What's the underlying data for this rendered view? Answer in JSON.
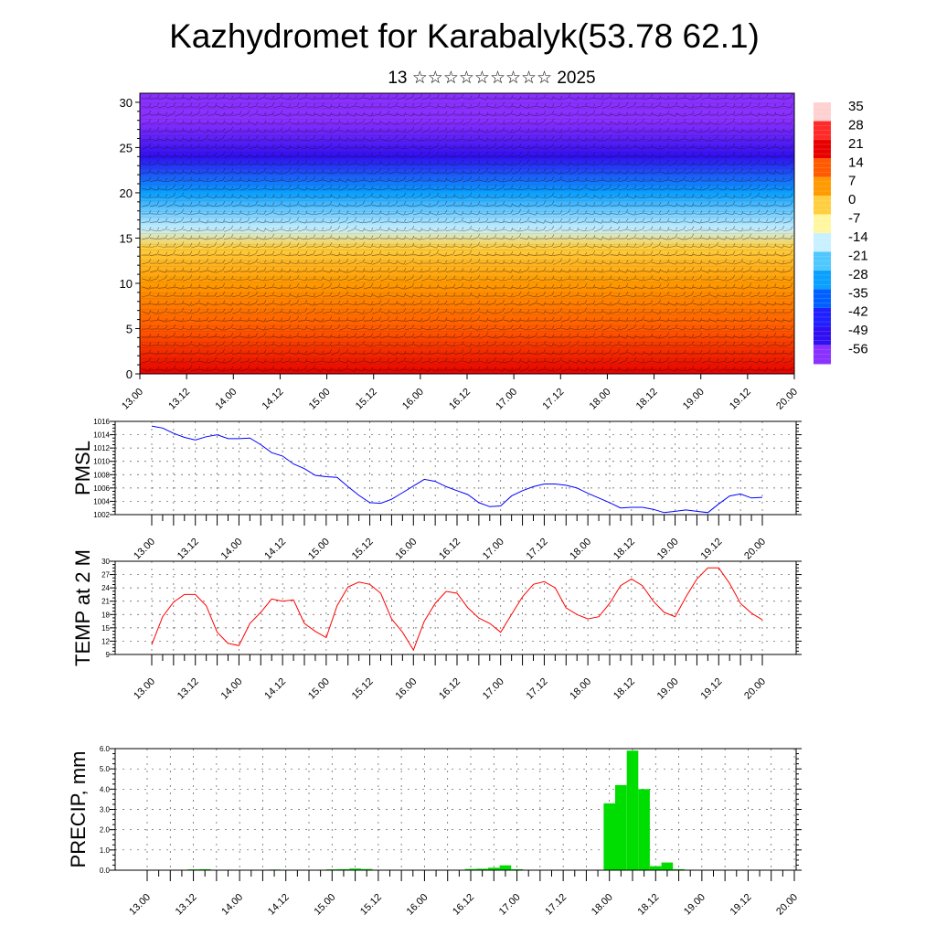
{
  "title": "Kazhydromet for Karabalyk(53.78 62.1)",
  "subtitle": "13 ☆☆☆☆☆☆☆☆☆ 2025",
  "time_labels": [
    "13.00",
    "13.12",
    "14.00",
    "14.12",
    "15.00",
    "15.12",
    "16.00",
    "16.12",
    "17.00",
    "17.12",
    "18.00",
    "18.12",
    "19.00",
    "19.12",
    "20.00"
  ],
  "chart_data": [
    {
      "type": "heatmap",
      "description_of_fields": "vertical cross-section: temperature colour field with wind barbs",
      "ylim": [
        0,
        31
      ],
      "yticks": [
        0,
        5,
        10,
        15,
        20,
        25,
        30
      ],
      "colorbar": {
        "labels": [
          "35",
          "28",
          "21",
          "14",
          "7",
          "0",
          "-7",
          "-14",
          "-21",
          "-28",
          "-35",
          "-42",
          "-49",
          "-56"
        ],
        "colors": [
          "#ffd0d0",
          "#ff2a2a",
          "#e80000",
          "#ff5a00",
          "#ff9a00",
          "#ffcf40",
          "#fff7a0",
          "#c8f0ff",
          "#4fc8ff",
          "#0aa0ff",
          "#0060ff",
          "#2020ff",
          "#3010f0",
          "#8a30ff"
        ]
      },
      "temperature_by_height": [
        {
          "level": 0,
          "value": 21
        },
        {
          "level": 5,
          "value": 18
        },
        {
          "level": 10,
          "value": 10
        },
        {
          "level": 14,
          "value": 2
        },
        {
          "level": 16,
          "value": -8
        },
        {
          "level": 20,
          "value": -25
        },
        {
          "level": 24,
          "value": -45
        },
        {
          "level": 28,
          "value": -55
        },
        {
          "level": 31,
          "value": -58
        }
      ]
    },
    {
      "type": "line",
      "ylabel": "PMSL",
      "ylim": [
        1002,
        1016
      ],
      "yticks": [
        1002,
        1004,
        1006,
        1008,
        1010,
        1012,
        1014,
        1016
      ],
      "x_range": [
        0,
        168
      ],
      "series": [
        {
          "color": "#0000ff",
          "x": [
            0,
            3,
            6,
            9,
            12,
            15,
            18,
            21,
            24,
            27,
            30,
            33,
            36,
            39,
            42,
            45,
            48,
            51,
            54,
            57,
            60,
            63,
            66,
            69,
            72,
            75,
            78,
            81,
            84,
            87,
            90,
            93,
            96,
            99,
            102,
            105,
            108,
            111,
            114,
            117,
            120,
            123,
            126,
            129,
            132,
            135,
            138,
            141,
            144,
            147,
            150,
            153,
            156,
            159,
            162,
            165,
            168
          ],
          "values": [
            1015.3,
            1015.0,
            1014.2,
            1013.6,
            1013.2,
            1013.7,
            1014.0,
            1013.4,
            1013.4,
            1013.5,
            1012.5,
            1011.3,
            1010.8,
            1009.6,
            1008.9,
            1007.9,
            1007.7,
            1007.6,
            1006.2,
            1004.9,
            1003.8,
            1003.7,
            1004.3,
            1005.3,
            1006.3,
            1007.3,
            1007.0,
            1006.2,
            1005.6,
            1005.0,
            1003.8,
            1003.2,
            1003.3,
            1004.8,
            1005.6,
            1006.2,
            1006.6,
            1006.6,
            1006.4,
            1006.0,
            1005.2,
            1004.5,
            1003.8,
            1003.0,
            1003.1,
            1003.1,
            1002.8,
            1002.3,
            1002.5,
            1002.7,
            1002.5,
            1002.3,
            1003.6,
            1004.8,
            1005.1,
            1004.5,
            1004.6
          ]
        }
      ]
    },
    {
      "type": "line",
      "ylabel": "TEMP at 2 M",
      "ylim": [
        9,
        30
      ],
      "yticks": [
        9,
        12,
        15,
        18,
        21,
        24,
        27,
        30
      ],
      "x_range": [
        0,
        168
      ],
      "series": [
        {
          "color": "#ff0000",
          "x": [
            0,
            3,
            6,
            9,
            12,
            15,
            18,
            21,
            24,
            27,
            30,
            33,
            36,
            39,
            42,
            45,
            48,
            51,
            54,
            57,
            60,
            63,
            66,
            69,
            72,
            75,
            78,
            81,
            84,
            87,
            90,
            93,
            96,
            99,
            102,
            105,
            108,
            111,
            114,
            117,
            120,
            123,
            126,
            129,
            132,
            135,
            138,
            141,
            144,
            147,
            150,
            153,
            156,
            159,
            162,
            165,
            168
          ],
          "values": [
            11.2,
            17.5,
            20.8,
            22.5,
            22.5,
            20.0,
            14.0,
            11.5,
            11.0,
            16.0,
            18.5,
            21.5,
            21.0,
            21.3,
            16.0,
            14.2,
            12.8,
            20.0,
            24.2,
            25.3,
            24.8,
            22.8,
            17.0,
            14.0,
            10.0,
            16.5,
            20.5,
            23.2,
            22.8,
            19.5,
            17.2,
            16.0,
            14.0,
            18.0,
            22.0,
            24.8,
            25.4,
            24.0,
            19.5,
            18.0,
            17.0,
            17.5,
            20.5,
            24.5,
            26.0,
            24.5,
            21.0,
            18.5,
            17.5,
            22.0,
            26.0,
            28.5,
            28.5,
            25.0,
            20.5,
            18.3,
            16.8
          ]
        }
      ]
    },
    {
      "type": "bar",
      "ylabel": "PRECIP, mm",
      "ylim": [
        0,
        6
      ],
      "yticks": [
        "0.0",
        "1.0",
        "2.0",
        "3.0",
        "4.0",
        "5.0",
        "6.0"
      ],
      "x_range": [
        0,
        168
      ],
      "bar_color": "#00dd00",
      "x": [
        12,
        15,
        21,
        27,
        33,
        36,
        45,
        48,
        51,
        54,
        57,
        69,
        72,
        84,
        87,
        90,
        93,
        96,
        105,
        120,
        123,
        126,
        129,
        132,
        135,
        138,
        141
      ],
      "values": [
        0.04,
        0.05,
        0.02,
        0.02,
        0.03,
        0.02,
        0.02,
        0.04,
        0.05,
        0.08,
        0.06,
        0.02,
        0.02,
        0.06,
        0.07,
        0.12,
        0.24,
        0.05,
        0.02,
        3.3,
        4.2,
        5.9,
        4.0,
        0.2,
        0.38,
        0.05,
        0.02
      ]
    }
  ]
}
